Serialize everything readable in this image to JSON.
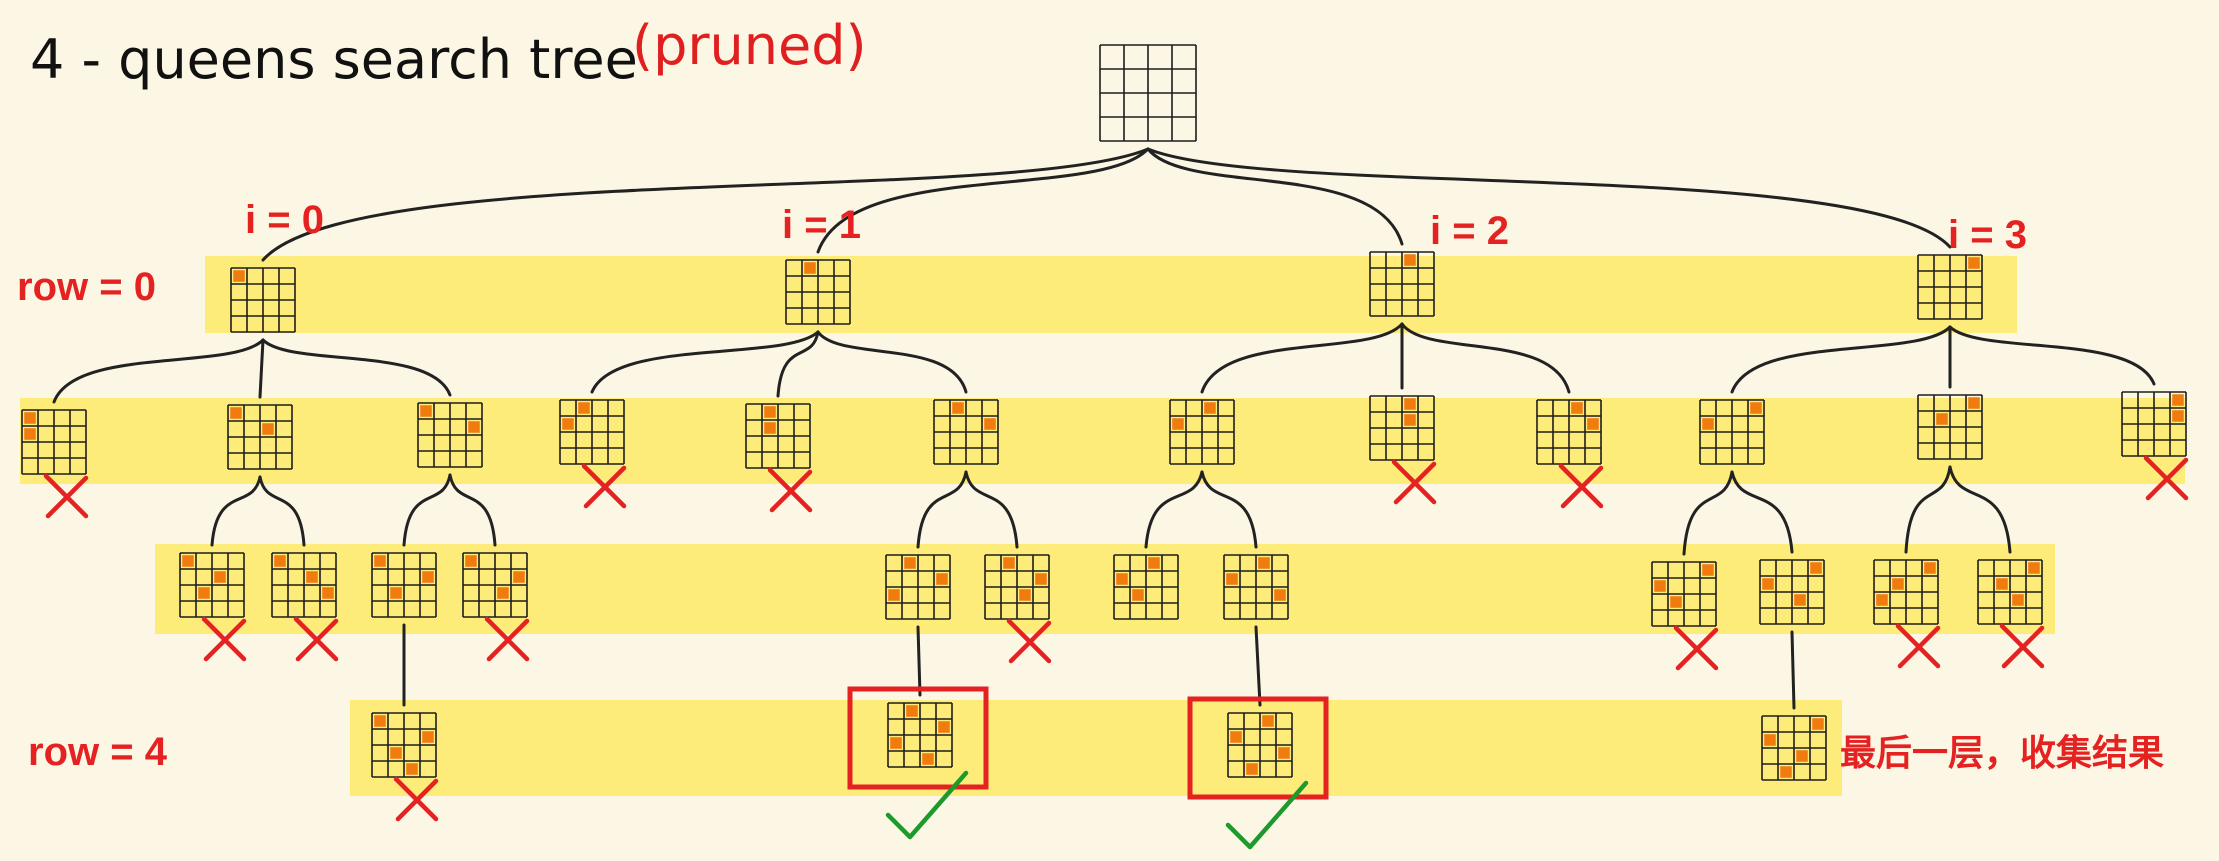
{
  "title": {
    "main": "4 - queens search tree",
    "sub": "(pruned)"
  },
  "row_labels": {
    "first": "row = 0",
    "last": "row = 4"
  },
  "branch_labels": [
    "i = 0",
    "i = 1",
    "i = 2",
    "i = 3"
  ],
  "final_note": "最后一层，收集结果",
  "colors": {
    "background": "#fcf7e4",
    "band": "#fdec7a",
    "queen": "#f07c10",
    "prune_mark": "#e52222",
    "solution_check": "#1e9a2d",
    "solution_frame": "#e52222",
    "grid": "#1d1d1d"
  },
  "board_size": 4,
  "nodes": [
    {
      "id": "root",
      "level": -1,
      "queens": [],
      "parent": null,
      "status": "open"
    },
    {
      "id": "a",
      "level": 0,
      "queens": [
        0
      ],
      "parent": "root",
      "status": "open"
    },
    {
      "id": "b",
      "level": 0,
      "queens": [
        1
      ],
      "parent": "root",
      "status": "open"
    },
    {
      "id": "c",
      "level": 0,
      "queens": [
        2
      ],
      "parent": "root",
      "status": "open"
    },
    {
      "id": "d",
      "level": 0,
      "queens": [
        3
      ],
      "parent": "root",
      "status": "open"
    },
    {
      "id": "a0",
      "level": 1,
      "queens": [
        0,
        0
      ],
      "parent": "a",
      "status": "pruned"
    },
    {
      "id": "a2",
      "level": 1,
      "queens": [
        0,
        2
      ],
      "parent": "a",
      "status": "open"
    },
    {
      "id": "a3",
      "level": 1,
      "queens": [
        0,
        3
      ],
      "parent": "a",
      "status": "open"
    },
    {
      "id": "b0",
      "level": 1,
      "queens": [
        1,
        0
      ],
      "parent": "b",
      "status": "pruned"
    },
    {
      "id": "b1",
      "level": 1,
      "queens": [
        1,
        1
      ],
      "parent": "b",
      "status": "pruned"
    },
    {
      "id": "b3",
      "level": 1,
      "queens": [
        1,
        3
      ],
      "parent": "b",
      "status": "open"
    },
    {
      "id": "c0",
      "level": 1,
      "queens": [
        2,
        0
      ],
      "parent": "c",
      "status": "open"
    },
    {
      "id": "c2",
      "level": 1,
      "queens": [
        2,
        2
      ],
      "parent": "c",
      "status": "pruned"
    },
    {
      "id": "c3",
      "level": 1,
      "queens": [
        2,
        3
      ],
      "parent": "c",
      "status": "pruned"
    },
    {
      "id": "d0",
      "level": 1,
      "queens": [
        3,
        0
      ],
      "parent": "d",
      "status": "open"
    },
    {
      "id": "d1",
      "level": 1,
      "queens": [
        3,
        1
      ],
      "parent": "d",
      "status": "open"
    },
    {
      "id": "d3",
      "level": 1,
      "queens": [
        3,
        3
      ],
      "parent": "d",
      "status": "pruned"
    },
    {
      "id": "a2x",
      "level": 2,
      "queens": [
        0,
        2,
        1
      ],
      "parent": "a2",
      "status": "pruned"
    },
    {
      "id": "a2y",
      "level": 2,
      "queens": [
        0,
        2,
        3
      ],
      "parent": "a2",
      "status": "pruned"
    },
    {
      "id": "a3x",
      "level": 2,
      "queens": [
        0,
        3,
        1
      ],
      "parent": "a3",
      "status": "open"
    },
    {
      "id": "a3y",
      "level": 2,
      "queens": [
        0,
        3,
        2
      ],
      "parent": "a3",
      "status": "pruned"
    },
    {
      "id": "b3x",
      "level": 2,
      "queens": [
        1,
        3,
        0
      ],
      "parent": "b3",
      "status": "open"
    },
    {
      "id": "b3y",
      "level": 2,
      "queens": [
        1,
        3,
        2
      ],
      "parent": "b3",
      "status": "pruned"
    },
    {
      "id": "c0x",
      "level": 2,
      "queens": [
        2,
        0,
        1
      ],
      "parent": "c0",
      "status": "open"
    },
    {
      "id": "c0y",
      "level": 2,
      "queens": [
        2,
        0,
        3
      ],
      "parent": "c0",
      "status": "open"
    },
    {
      "id": "d0x",
      "level": 2,
      "queens": [
        3,
        0,
        1
      ],
      "parent": "d0",
      "status": "pruned"
    },
    {
      "id": "d0y",
      "level": 2,
      "queens": [
        3,
        0,
        2
      ],
      "parent": "d0",
      "status": "open"
    },
    {
      "id": "d1x",
      "level": 2,
      "queens": [
        3,
        1,
        0
      ],
      "parent": "d1",
      "status": "pruned"
    },
    {
      "id": "d1y",
      "level": 2,
      "queens": [
        3,
        1,
        2
      ],
      "parent": "d1",
      "status": "pruned"
    },
    {
      "id": "a3xz",
      "level": 3,
      "queens": [
        0,
        3,
        1,
        2
      ],
      "parent": "a3x",
      "status": "pruned"
    },
    {
      "id": "b3xz",
      "level": 3,
      "queens": [
        1,
        3,
        0,
        2
      ],
      "parent": "b3x",
      "status": "solution"
    },
    {
      "id": "c0yz",
      "level": 3,
      "queens": [
        2,
        0,
        3,
        1
      ],
      "parent": "c0y",
      "status": "solution"
    },
    {
      "id": "d0yz",
      "level": 3,
      "queens": [
        3,
        0,
        2,
        1
      ],
      "parent": "d0y",
      "status": "open"
    }
  ]
}
